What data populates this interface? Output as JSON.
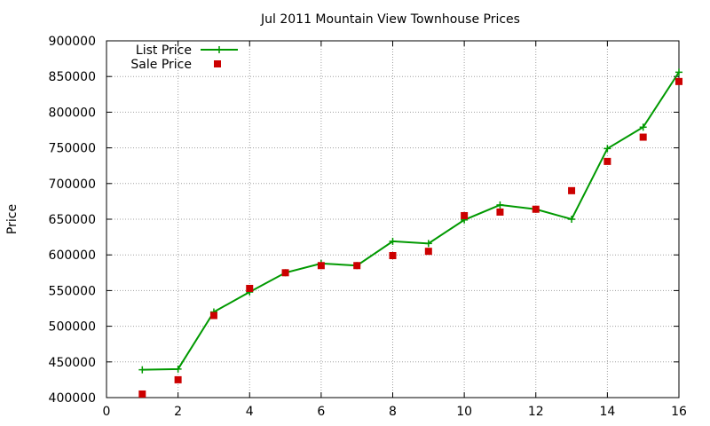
{
  "chart_data": {
    "type": "line",
    "title": "Jul 2011 Mountain View Townhouse Prices",
    "xlabel": "",
    "ylabel": "Price",
    "xlim": [
      0,
      16
    ],
    "ylim": [
      400000,
      900000
    ],
    "xticks": [
      0,
      2,
      4,
      6,
      8,
      10,
      12,
      14,
      16
    ],
    "yticks": [
      400000,
      450000,
      500000,
      550000,
      600000,
      650000,
      700000,
      750000,
      800000,
      850000,
      900000
    ],
    "grid": true,
    "legend_position": "top-left",
    "series": [
      {
        "name": "List Price",
        "style": "line+cross",
        "color": "#009900",
        "x": [
          1,
          2,
          3,
          4,
          5,
          6,
          7,
          8,
          9,
          10,
          11,
          12,
          13,
          14,
          15,
          16
        ],
        "y": [
          439000,
          440000,
          520000,
          548000,
          575000,
          588000,
          585000,
          619000,
          616000,
          649000,
          670000,
          664000,
          650000,
          749000,
          779000,
          856000
        ]
      },
      {
        "name": "Sale Price",
        "style": "square",
        "color": "#cc0000",
        "x": [
          1,
          2,
          3,
          4,
          5,
          6,
          7,
          8,
          9,
          10,
          11,
          12,
          13,
          14,
          15,
          16
        ],
        "y": [
          405000,
          425000,
          515000,
          553000,
          575000,
          585000,
          585000,
          599000,
          605000,
          655000,
          660000,
          664000,
          690000,
          731000,
          765000,
          843000
        ]
      }
    ]
  }
}
